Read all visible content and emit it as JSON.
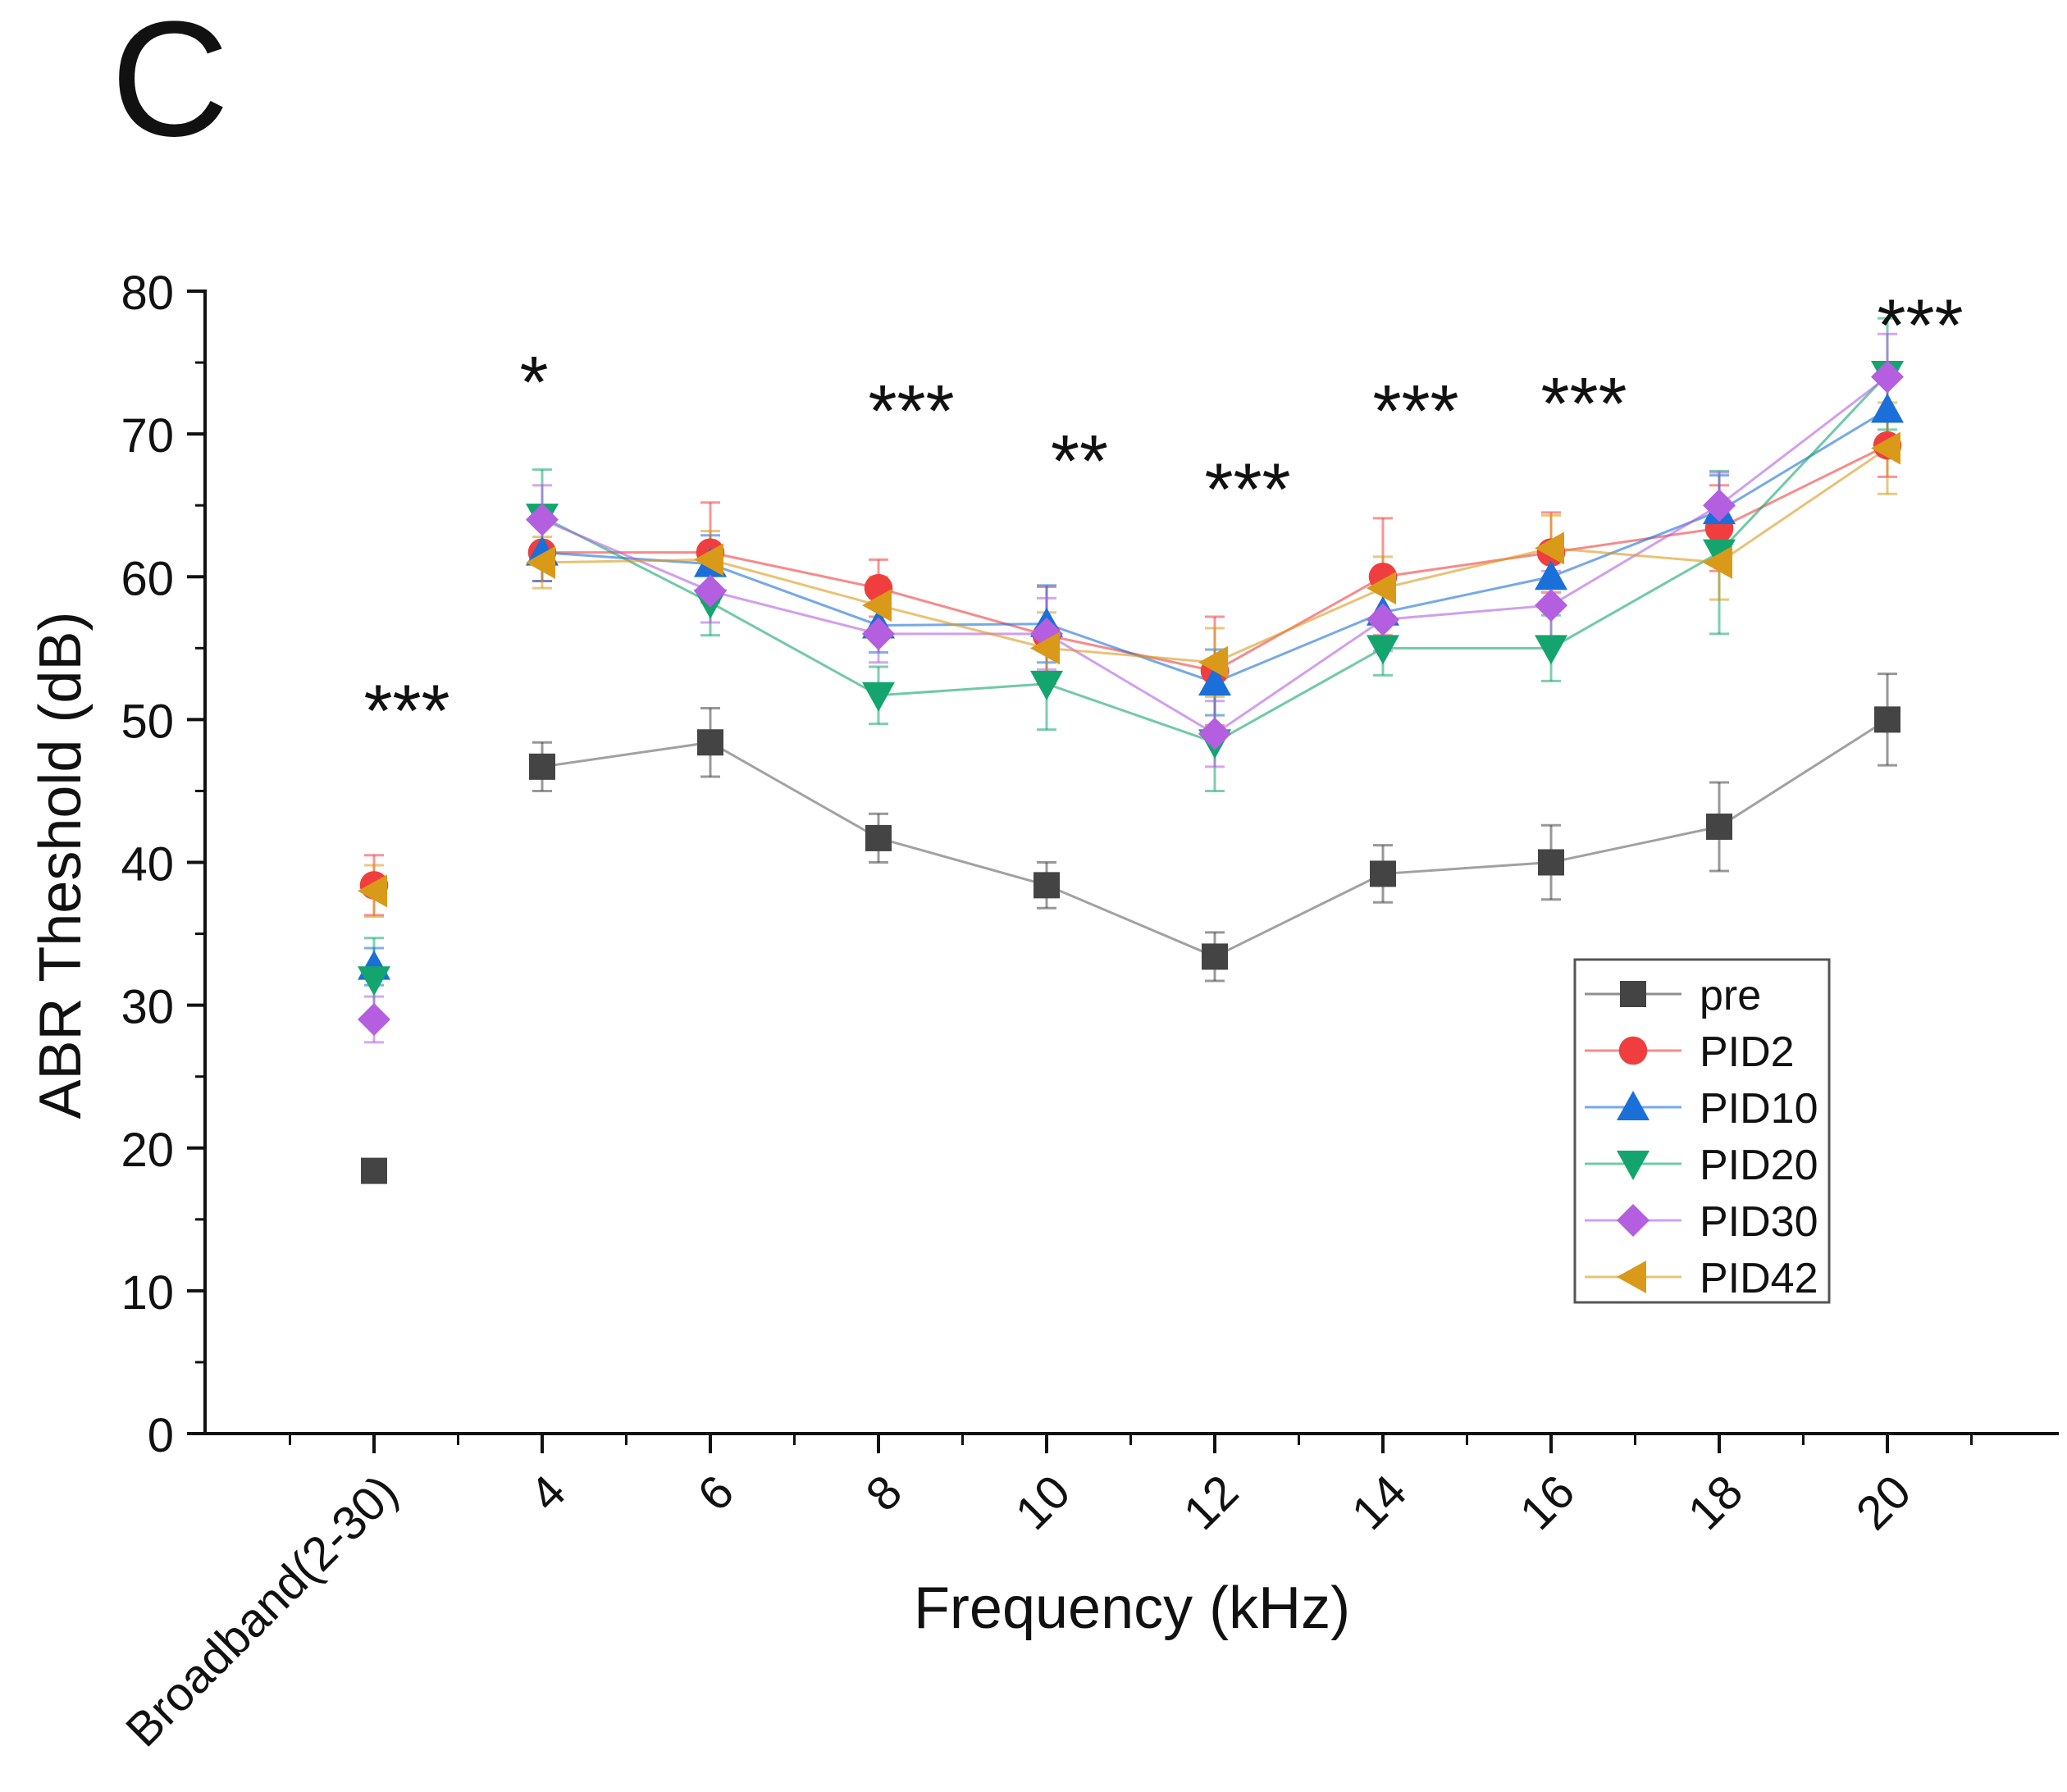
{
  "chart_data": {
    "type": "line",
    "panel_label": "C",
    "xlabel": "Frequency (kHz)",
    "ylabel": "ABR Theshold (dB)",
    "ylim": [
      0,
      80
    ],
    "y_ticks": [
      0,
      10,
      20,
      30,
      40,
      50,
      60,
      70,
      80
    ],
    "categories": [
      "Broadband(2-30)",
      "4",
      "6",
      "8",
      "10",
      "12",
      "14",
      "16",
      "18",
      "20"
    ],
    "grid": false,
    "legend_position": "bottom-right",
    "series": [
      {
        "name": "pre",
        "color": "#444444",
        "marker": "square",
        "values": [
          18.4,
          46.7,
          48.4,
          41.7,
          38.4,
          33.4,
          39.2,
          40.0,
          42.5,
          50.0
        ],
        "errors": [
          0.8,
          1.7,
          2.4,
          1.7,
          1.6,
          1.7,
          2.0,
          2.6,
          3.1,
          3.2
        ]
      },
      {
        "name": "PID2",
        "color": "#f03e3e",
        "marker": "circle",
        "values": [
          38.4,
          61.7,
          61.7,
          59.2,
          55.9,
          53.4,
          60.0,
          61.7,
          63.4,
          69.2
        ],
        "errors": [
          2.1,
          2.0,
          3.5,
          2.0,
          3.4,
          3.8,
          4.1,
          2.8,
          3.0,
          2.2
        ]
      },
      {
        "name": "PID10",
        "color": "#1a6fd8",
        "marker": "triangle-up",
        "values": [
          32.7,
          61.7,
          60.9,
          56.6,
          56.7,
          52.6,
          57.5,
          60.0,
          64.6,
          71.7
        ],
        "errors": [
          1.3,
          2.0,
          2.0,
          1.9,
          2.7,
          2.3,
          2.2,
          2.2,
          2.5,
          3.2
        ]
      },
      {
        "name": "PID20",
        "color": "#13a56d",
        "marker": "triangle-down",
        "values": [
          31.8,
          64.2,
          58.2,
          51.7,
          52.5,
          48.4,
          55.0,
          55.0,
          61.7,
          74.2
        ],
        "errors": [
          2.9,
          3.3,
          2.3,
          2.0,
          3.2,
          3.4,
          1.9,
          2.3,
          5.7,
          3.9
        ]
      },
      {
        "name": "PID30",
        "color": "#b35fe0",
        "marker": "diamond",
        "values": [
          29.0,
          64.0,
          59.0,
          56.0,
          56.0,
          49.0,
          57.0,
          58.0,
          65.0,
          74.0
        ],
        "errors": [
          1.6,
          2.4,
          2.2,
          2.0,
          2.5,
          2.3,
          2.2,
          2.4,
          2.3,
          3.0
        ]
      },
      {
        "name": "PID42",
        "color": "#d99a1a",
        "marker": "triangle-left",
        "values": [
          38.0,
          61.0,
          61.2,
          58.0,
          55.0,
          54.0,
          59.2,
          62.0,
          61.0,
          69.0
        ],
        "errors": [
          1.8,
          1.8,
          2.0,
          2.0,
          2.5,
          2.4,
          2.2,
          2.3,
          2.6,
          3.2
        ]
      }
    ],
    "annotations": [
      {
        "text": "***",
        "category": "Broadband(2-30)",
        "y": 52
      },
      {
        "text": "*",
        "category": "4",
        "y": 75
      },
      {
        "text": "***",
        "category": "8",
        "y": 73
      },
      {
        "text": "**",
        "category": "10",
        "y": 69.5
      },
      {
        "text": "***",
        "category": "12",
        "y": 67.5
      },
      {
        "text": "***",
        "category": "14",
        "y": 73
      },
      {
        "text": "***",
        "category": "16",
        "y": 73.5
      },
      {
        "text": "***",
        "category": "20",
        "y": 79
      }
    ]
  }
}
